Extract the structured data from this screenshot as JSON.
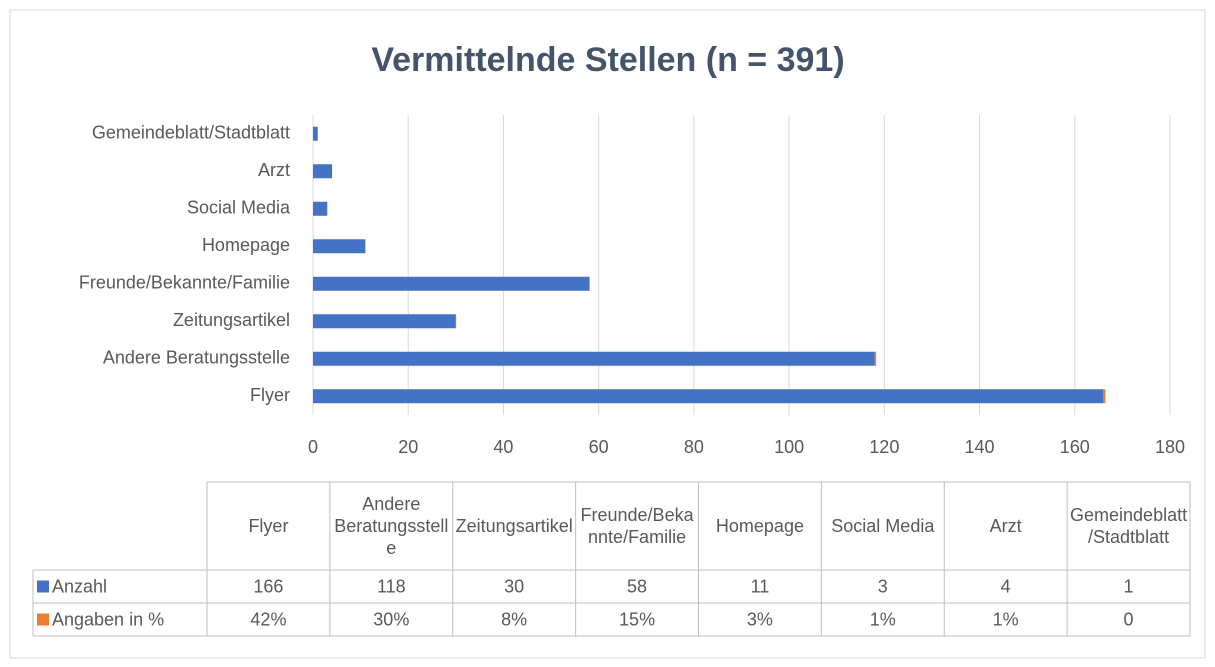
{
  "chart_data": {
    "type": "bar",
    "orientation": "horizontal",
    "stacked": true,
    "title": "Vermittelnde Stellen (n = 391)",
    "categories": [
      "Flyer",
      "Andere Beratungsstelle",
      "Zeitungsartikel",
      "Freunde/Bekannte/Familie",
      "Homepage",
      "Social Media",
      "Arzt",
      "Gemeindeblatt/Stadtblatt"
    ],
    "series": [
      {
        "name": "Anzahl",
        "color": "#4472c4",
        "values": [
          166,
          118,
          30,
          58,
          11,
          3,
          4,
          1
        ]
      },
      {
        "name": "Angaben in %",
        "color": "#ed7d31",
        "values": [
          0.42,
          0.3,
          0.08,
          0.15,
          0.03,
          0.01,
          0.01,
          0
        ],
        "value_labels": [
          "42%",
          "30%",
          "8%",
          "15%",
          "3%",
          "1%",
          "1%",
          "0"
        ]
      }
    ],
    "xlim": [
      0,
      180
    ],
    "xticks": [
      0,
      20,
      40,
      60,
      80,
      100,
      120,
      140,
      160,
      180
    ],
    "grid": true,
    "legend": "data-table"
  }
}
